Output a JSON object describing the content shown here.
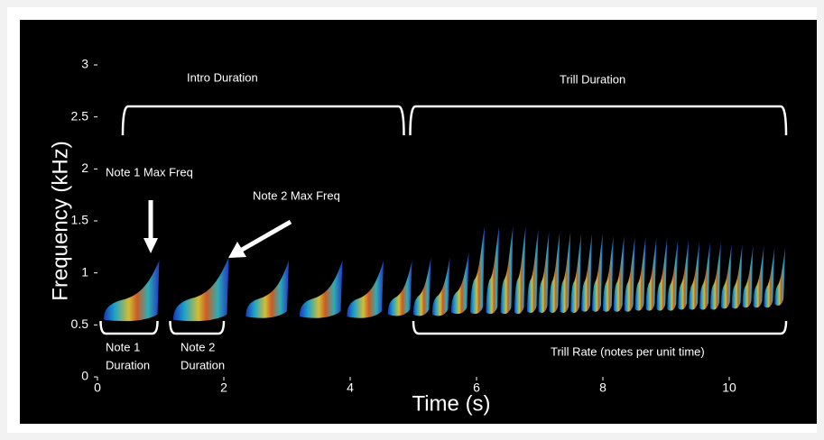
{
  "chart_data": {
    "type": "spectrogram",
    "xlabel": "Time (s)",
    "ylabel": "Frequency (kHz)",
    "xlim": [
      0,
      11
    ],
    "ylim": [
      0,
      3
    ],
    "xticks": [
      0,
      2,
      4,
      6,
      8,
      10
    ],
    "yticks": [
      0,
      0.5,
      1,
      1.5,
      2,
      2.5,
      3
    ],
    "notes": [
      [
        0.1,
        0.95,
        0.55,
        1.12
      ],
      [
        1.2,
        2.05,
        0.55,
        1.15
      ],
      [
        2.35,
        3.0,
        0.58,
        1.12
      ],
      [
        3.2,
        3.85,
        0.58,
        1.12
      ],
      [
        3.95,
        4.5,
        0.58,
        1.12
      ],
      [
        4.6,
        4.95,
        0.6,
        1.12
      ],
      [
        5.0,
        5.25,
        0.6,
        1.15
      ],
      [
        5.3,
        5.55,
        0.6,
        1.15
      ],
      [
        5.6,
        5.85,
        0.62,
        1.2
      ],
      [
        5.9,
        6.1,
        0.62,
        1.45
      ],
      [
        6.15,
        6.33,
        0.62,
        1.45
      ],
      [
        6.38,
        6.55,
        0.62,
        1.45
      ],
      [
        6.6,
        6.75,
        0.62,
        1.45
      ],
      [
        6.8,
        6.95,
        0.63,
        1.42
      ],
      [
        6.98,
        7.12,
        0.63,
        1.4
      ],
      [
        7.15,
        7.29,
        0.63,
        1.4
      ],
      [
        7.32,
        7.46,
        0.63,
        1.4
      ],
      [
        7.49,
        7.63,
        0.63,
        1.38
      ],
      [
        7.66,
        7.8,
        0.64,
        1.38
      ],
      [
        7.83,
        7.97,
        0.64,
        1.38
      ],
      [
        8.0,
        8.14,
        0.64,
        1.36
      ],
      [
        8.17,
        8.31,
        0.64,
        1.36
      ],
      [
        8.34,
        8.48,
        0.64,
        1.35
      ],
      [
        8.51,
        8.65,
        0.65,
        1.35
      ],
      [
        8.68,
        8.82,
        0.65,
        1.34
      ],
      [
        8.85,
        8.99,
        0.65,
        1.34
      ],
      [
        9.02,
        9.16,
        0.65,
        1.32
      ],
      [
        9.19,
        9.33,
        0.66,
        1.32
      ],
      [
        9.36,
        9.5,
        0.66,
        1.3
      ],
      [
        9.53,
        9.67,
        0.66,
        1.3
      ],
      [
        9.7,
        9.84,
        0.66,
        1.3
      ],
      [
        9.87,
        10.01,
        0.67,
        1.28
      ],
      [
        10.04,
        10.18,
        0.67,
        1.28
      ],
      [
        10.21,
        10.35,
        0.68,
        1.26
      ],
      [
        10.38,
        10.52,
        0.68,
        1.26
      ],
      [
        10.55,
        10.69,
        0.68,
        1.25
      ],
      [
        10.72,
        10.86,
        0.7,
        1.25
      ]
    ],
    "brackets": [
      {
        "label": [
          "Intro Duration"
        ],
        "start": 0.4,
        "end": 4.85
      },
      {
        "label": [
          "Trill Duration"
        ],
        "start": 4.95,
        "end": 10.9
      },
      {
        "label": [
          "Note 1",
          "Duration"
        ],
        "start": 0.05,
        "end": 0.95
      },
      {
        "label": [
          "Note 2",
          "Duration"
        ],
        "start": 1.15,
        "end": 2.0
      },
      {
        "label": [
          "Trill Rate (notes per unit time)"
        ],
        "start": 5.0,
        "end": 10.9
      }
    ],
    "arrow_labels": [
      "Note 1 Max Freq",
      "Note 2 Max Freq"
    ]
  }
}
